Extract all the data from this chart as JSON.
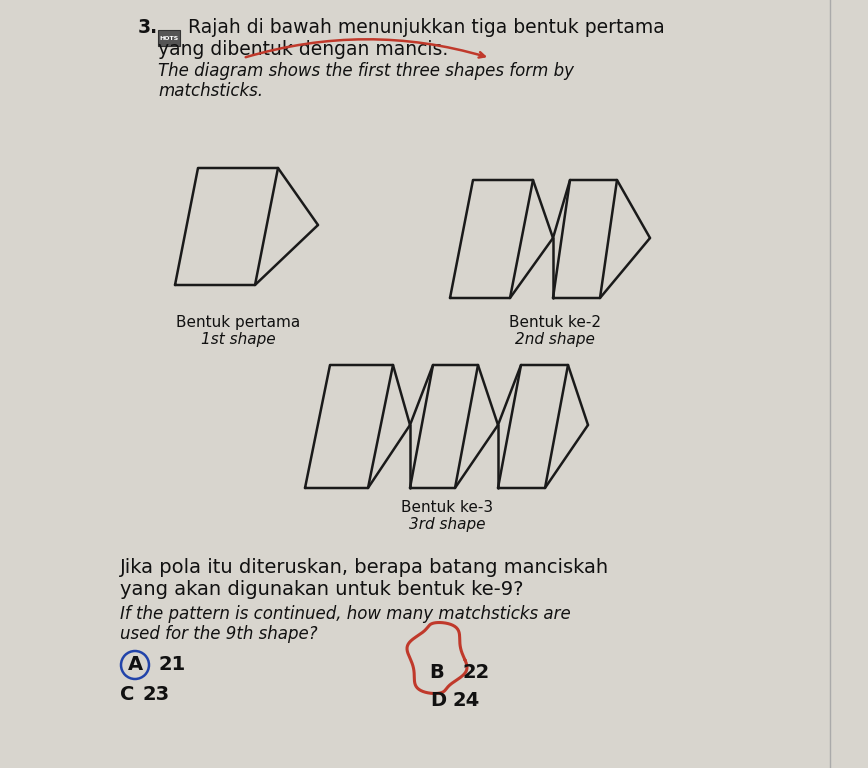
{
  "background_color": "#d8d5ce",
  "page_color": "#e8e6e0",
  "title_number": "3.",
  "malay_text_line1": "Rajah di bawah menunjukkan tiga bentuk pertama",
  "malay_text_line2": "yang dibentuk dengan mancis.",
  "english_text_line1": "The diagram shows the first three shapes form by",
  "english_text_line2": "matchsticks.",
  "label1_malay": "Bentuk pertama",
  "label1_english": "1st shape",
  "label2_malay": "Bentuk ke-2",
  "label2_english": "2nd shape",
  "label3_malay": "Bentuk ke-3",
  "label3_english": "3rd shape",
  "question_malay_line1": "Jika pola itu diteruskan, berapa batang manciskah",
  "question_malay_line2": "yang akan digunakan untuk bentuk ke-9?",
  "question_english_line1": "If the pattern is continued, how many matchsticks are",
  "question_english_line2": "used for the 9th shape?",
  "arrow_color": "#c0392b",
  "circle_color": "#c0392b",
  "text_color": "#111111",
  "line_color": "#1a1a1a",
  "hots_color": "#555555"
}
